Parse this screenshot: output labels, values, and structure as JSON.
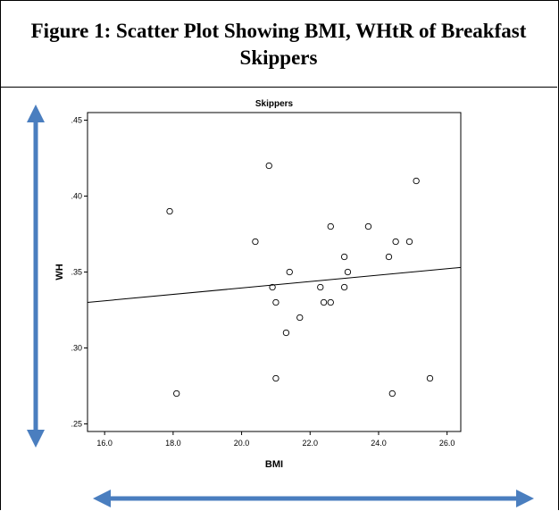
{
  "figure": {
    "caption": "Figure 1: Scatter Plot Showing BMI, WHtR of Breakfast Skippers"
  },
  "colors": {
    "arrow": "#4a7ebf",
    "points": "#000000",
    "fitline": "#000000"
  },
  "chart_data": {
    "type": "scatter",
    "title": "Skippers",
    "xlabel": "BMI",
    "ylabel": "WH",
    "xlim": [
      15.5,
      26.4
    ],
    "ylim": [
      0.245,
      0.455
    ],
    "xticks": [
      "16.0",
      "18.0",
      "20.0",
      "22.0",
      "24.0",
      "26.0"
    ],
    "xtick_values": [
      16,
      18,
      20,
      22,
      24,
      26
    ],
    "yticks": [
      ".25",
      ".30",
      ".35",
      ".40",
      ".45"
    ],
    "ytick_values": [
      0.25,
      0.3,
      0.35,
      0.4,
      0.45
    ],
    "grid": false,
    "series": [
      {
        "points": [
          {
            "x": 17.9,
            "y": 0.39
          },
          {
            "x": 18.1,
            "y": 0.27
          },
          {
            "x": 20.4,
            "y": 0.37
          },
          {
            "x": 20.8,
            "y": 0.42
          },
          {
            "x": 20.9,
            "y": 0.34
          },
          {
            "x": 21.0,
            "y": 0.33
          },
          {
            "x": 21.0,
            "y": 0.28
          },
          {
            "x": 21.3,
            "y": 0.31
          },
          {
            "x": 21.4,
            "y": 0.35
          },
          {
            "x": 21.7,
            "y": 0.32
          },
          {
            "x": 22.3,
            "y": 0.34
          },
          {
            "x": 22.4,
            "y": 0.33
          },
          {
            "x": 22.6,
            "y": 0.38
          },
          {
            "x": 22.6,
            "y": 0.33
          },
          {
            "x": 23.0,
            "y": 0.36
          },
          {
            "x": 23.0,
            "y": 0.34
          },
          {
            "x": 23.1,
            "y": 0.35
          },
          {
            "x": 23.7,
            "y": 0.38
          },
          {
            "x": 24.3,
            "y": 0.36
          },
          {
            "x": 24.4,
            "y": 0.27
          },
          {
            "x": 24.5,
            "y": 0.37
          },
          {
            "x": 24.9,
            "y": 0.37
          },
          {
            "x": 25.1,
            "y": 0.41
          },
          {
            "x": 25.5,
            "y": 0.28
          }
        ]
      }
    ],
    "fit_line": {
      "x": [
        15.5,
        26.4
      ],
      "y": [
        0.33,
        0.353
      ]
    }
  }
}
